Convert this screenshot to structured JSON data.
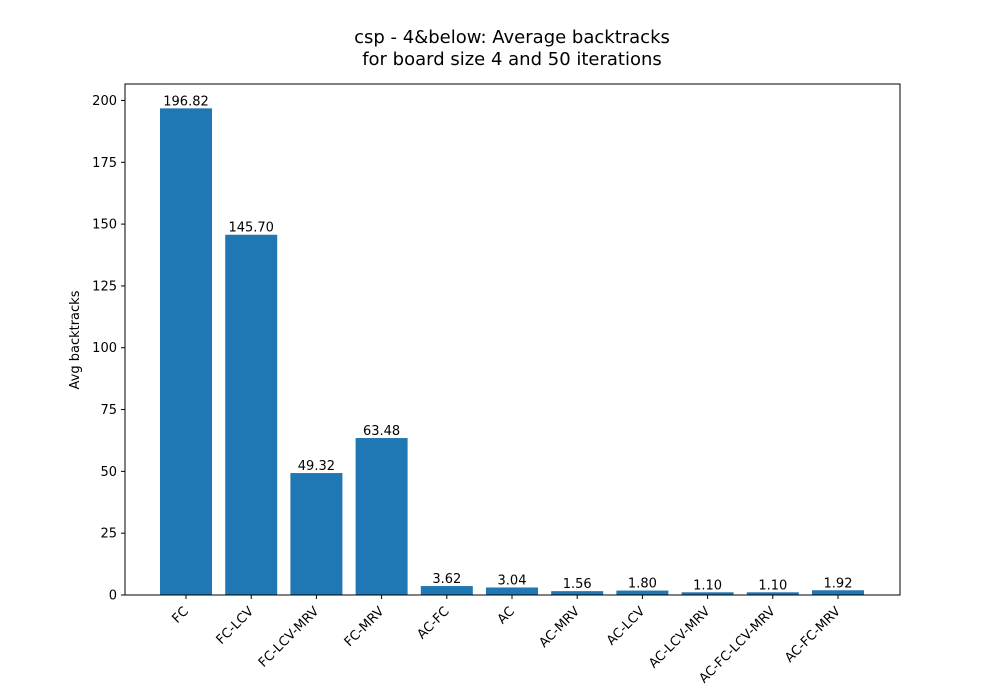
{
  "chart_data": {
    "type": "bar",
    "title_lines": [
      "csp - 4&below: Average backtracks",
      "for board size 4 and 50 iterations"
    ],
    "xlabel": "",
    "ylabel": "Avg backtracks",
    "categories": [
      "FC",
      "FC-LCV",
      "FC-LCV-MRV",
      "FC-MRV",
      "AC-FC",
      "AC",
      "AC-MRV",
      "AC-LCV",
      "AC-LCV-MRV",
      "AC-FC-LCV-MRV",
      "AC-FC-MRV"
    ],
    "values": [
      196.82,
      145.7,
      49.32,
      63.48,
      3.62,
      3.04,
      1.56,
      1.8,
      1.1,
      1.1,
      1.92
    ],
    "data_labels": [
      "196.82",
      "145.70",
      "49.32",
      "63.48",
      "3.62",
      "3.04",
      "1.56",
      "1.80",
      "1.10",
      "1.10",
      "1.92"
    ],
    "y_ticks": [
      0,
      25,
      50,
      75,
      100,
      125,
      150,
      175,
      200
    ],
    "ylim": [
      0,
      206.66
    ],
    "grid": false,
    "legend": "none",
    "bar_color": "#1f77b4"
  }
}
